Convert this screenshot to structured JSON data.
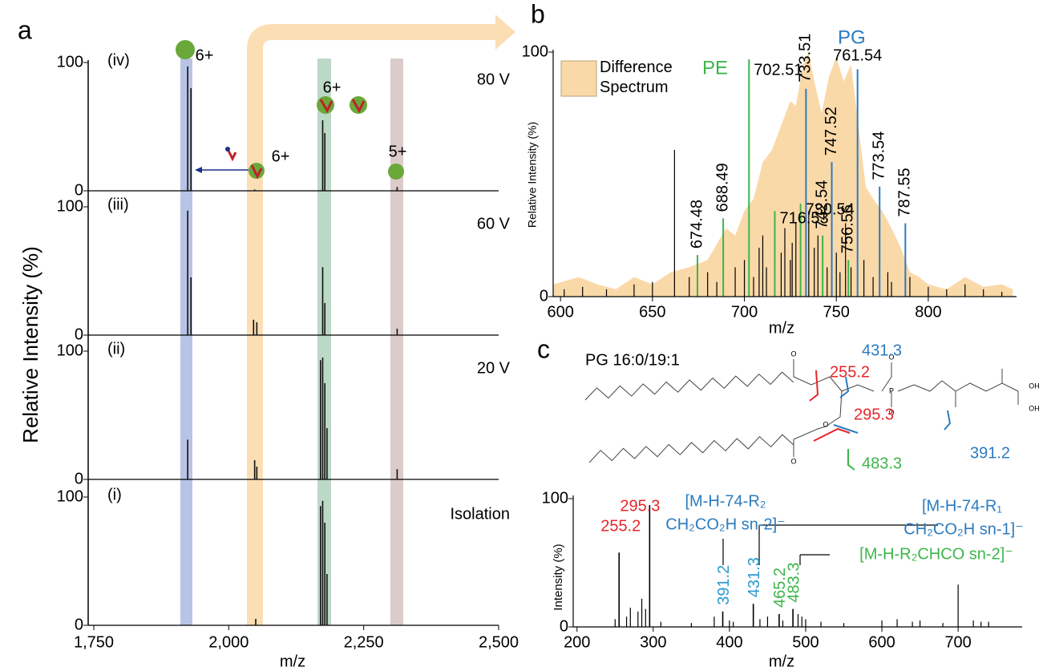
{
  "panel_a": {
    "label": "a",
    "y_label": "Relative Intensity  (%)",
    "x_label": "m/z",
    "xlim": [
      1750,
      2500
    ],
    "xticks": [
      {
        "value": 1750,
        "label": "1,750"
      },
      {
        "value": 2000,
        "label": "2,000"
      },
      {
        "value": 2250,
        "label": "2,250"
      },
      {
        "value": 2500,
        "label": "2,500"
      }
    ],
    "ylim": [
      0,
      100
    ],
    "yticks": [
      0,
      100
    ],
    "spectra": [
      {
        "label": "(iv)",
        "condition": "80 V",
        "x": [
          1924,
          1930,
          2048,
          2174,
          2178,
          2312
        ],
        "values": [
          97,
          80,
          1,
          55,
          45,
          3
        ]
      },
      {
        "label": "(iii)",
        "condition": "60 V",
        "x": [
          1924,
          1930,
          2046,
          2052,
          2174,
          2178,
          2312
        ],
        "values": [
          97,
          45,
          12,
          10,
          53,
          25,
          5
        ]
      },
      {
        "label": "(ii)",
        "condition": "20 V",
        "x": [
          1924,
          2048,
          2052,
          2170,
          2174,
          2178,
          2182,
          2312
        ],
        "values": [
          31,
          15,
          10,
          93,
          95,
          75,
          40,
          8
        ]
      },
      {
        "label": "(i)",
        "condition": "Isolation",
        "x": [
          2050,
          2170,
          2174,
          2178,
          2182
        ],
        "values": [
          5,
          93,
          97,
          80,
          40
        ]
      }
    ],
    "charge_labels": [
      "6+",
      "6+",
      "6+",
      "5+"
    ]
  },
  "panel_b": {
    "label": "b",
    "y_label": "Relative Intensity  (%)",
    "x_label": "m/z",
    "xlim": [
      596,
      848
    ],
    "xticks": [
      600,
      650,
      700,
      750,
      800
    ],
    "ylim": [
      0,
      100
    ],
    "yticks": [
      0,
      100
    ],
    "difference_spectrum": {
      "name": "Difference Spectrum",
      "color": "#fad9a8",
      "x": [
        596,
        610,
        620,
        630,
        640,
        650,
        660,
        670,
        680,
        690,
        695,
        700,
        705,
        710,
        715,
        720,
        725,
        728,
        732,
        735,
        738,
        742,
        746,
        750,
        754,
        758,
        762,
        766,
        770,
        775,
        780,
        785,
        790,
        795,
        800,
        810,
        820,
        830,
        840,
        846
      ],
      "values": [
        5,
        8,
        5,
        3,
        8,
        5,
        10,
        12,
        15,
        28,
        25,
        35,
        40,
        55,
        60,
        70,
        80,
        78,
        95,
        100,
        88,
        75,
        90,
        98,
        88,
        95,
        70,
        45,
        40,
        35,
        28,
        20,
        10,
        8,
        5,
        3,
        8,
        4,
        5,
        3
      ]
    },
    "series": [
      {
        "name": "PE",
        "color": "#3db54a",
        "x": [
          674.48,
          688.49,
          702.51,
          716.53,
          730.54,
          742.54,
          756.56
        ],
        "values": [
          17,
          32,
          97,
          35,
          38,
          25,
          15
        ]
      },
      {
        "name": "PG",
        "color": "#2b7bc0",
        "x": [
          733.51,
          747.52,
          761.54,
          773.54,
          787.55
        ],
        "values": [
          85,
          55,
          93,
          45,
          30
        ]
      }
    ],
    "other_peaks": {
      "color": "#000000",
      "x": [
        602,
        612,
        625,
        640,
        650,
        662,
        670,
        680,
        685,
        695,
        700,
        705,
        708,
        710,
        712,
        720,
        722,
        725,
        726,
        728,
        735,
        738,
        740,
        745,
        750,
        752,
        755,
        758,
        765,
        770,
        778,
        780,
        790,
        800,
        810,
        820,
        830,
        840
      ],
      "values": [
        3,
        4,
        3,
        5,
        6,
        60,
        8,
        10,
        6,
        12,
        15,
        8,
        20,
        25,
        12,
        18,
        28,
        15,
        22,
        30,
        35,
        20,
        25,
        12,
        18,
        10,
        30,
        12,
        15,
        8,
        10,
        6,
        8,
        4,
        3,
        5,
        3,
        2
      ]
    }
  },
  "panel_c": {
    "label": "c",
    "structure": {
      "name": "PG 16:0/19:1",
      "fragments": [
        255.2,
        431.3,
        295.3,
        391.2,
        483.3
      ],
      "atoms": [
        "O",
        "O",
        "O",
        "P",
        "O",
        "O",
        "OH",
        "OH"
      ]
    },
    "spectrum": {
      "y_label": "Intensity  (%)",
      "x_label": "m/z",
      "xlim": [
        195,
        784
      ],
      "xticks": [
        200,
        300,
        400,
        500,
        600,
        700
      ],
      "ylim": [
        0,
        100
      ],
      "yticks": [
        0,
        100
      ],
      "series": [
        {
          "color": "#e8262a",
          "x": [
            255.2,
            295.3
          ],
          "values": [
            58,
            95
          ]
        },
        {
          "color": "#2b9bd0",
          "x": [
            391.2,
            431.3
          ],
          "values": [
            12,
            18
          ]
        },
        {
          "color": "#3db54a",
          "x": [
            465.2,
            483.3
          ],
          "values": [
            10,
            14
          ]
        }
      ],
      "other_peaks": {
        "color": "#000000",
        "x": [
          250,
          265,
          270,
          280,
          285,
          290,
          310,
          350,
          380,
          400,
          405,
          440,
          450,
          470,
          490,
          495,
          500,
          520,
          550,
          600,
          620,
          640,
          650,
          680,
          700,
          720,
          730,
          740
        ],
        "values": [
          6,
          8,
          15,
          12,
          22,
          14,
          4,
          3,
          8,
          5,
          4,
          6,
          8,
          5,
          10,
          8,
          6,
          4,
          3,
          5,
          6,
          4,
          5,
          3,
          33,
          5,
          4,
          4
        ]
      },
      "annotations": [
        {
          "color": "#2b7bc0",
          "lines": [
            "[M-H-74-R₂",
            "CH₂CO₂H sn-2]⁻"
          ]
        },
        {
          "color": "#2b7bc0",
          "lines": [
            "[M-H-74-R₁",
            "CH₂CO₂H sn-1]⁻"
          ]
        },
        {
          "color": "#3db54a",
          "lines": [
            "[M-H-R₂CHCO sn-2]⁻"
          ]
        }
      ]
    }
  }
}
